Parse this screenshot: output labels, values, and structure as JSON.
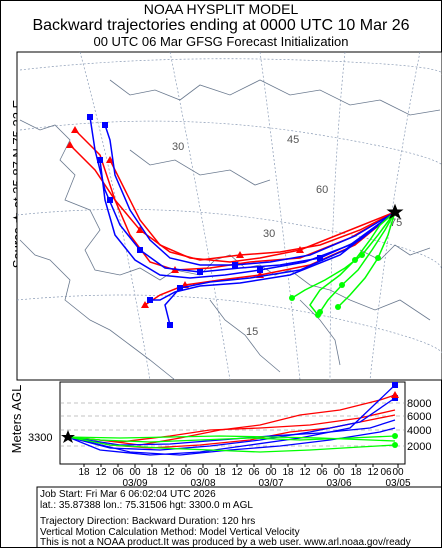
{
  "header": {
    "title": "NOAA HYSPLIT MODEL",
    "subtitle": "Backward trajectories ending at 0000 UTC 10 Mar 26",
    "run_line": "00 UTC 06 Mar    GFSG  Forecast Initialization"
  },
  "source_label": "Source ★ at   35.87 N   75.32 E",
  "map": {
    "lat_labels": [
      "30",
      "45",
      "60",
      "75",
      "30",
      "15",
      "45",
      "60",
      "15"
    ],
    "lon_labels": [
      "30",
      "45",
      "30",
      "15"
    ],
    "source_marker": "star",
    "trajectory_colors": {
      "red": "#ff0000",
      "blue": "#0000ff",
      "green": "#00ff00"
    }
  },
  "vertical_panel": {
    "axis_label": "Meters AGL",
    "start_height": "3300",
    "height_ticks": [
      "8000",
      "6000",
      "4000",
      "2000"
    ],
    "time_ticks": [
      "18",
      "12",
      "06",
      "00",
      "18",
      "12",
      "06",
      "00",
      "18",
      "12",
      "06",
      "00",
      "18",
      "12",
      "06",
      "00",
      "18",
      "12",
      "06",
      "00"
    ],
    "date_labels": [
      "03/09",
      "03/08",
      "03/07",
      "03/06",
      "03/05"
    ]
  },
  "footer": {
    "job_start": "Job Start: Fri Mar  6 06:02:04 UTC 2026",
    "location": "lat.: 35.87388   lon.: 75.31506    hgt: 3300.0 m AGL",
    "direction": "Trajectory Direction: Backward        Duration: 120 hrs",
    "vertical_motion": "Vertical Motion Calculation Method: Model Vertical Velocity",
    "disclaimer": "This is not a NOAA product.It was produced by a web user. www.arl.noaa.gov/ready"
  }
}
